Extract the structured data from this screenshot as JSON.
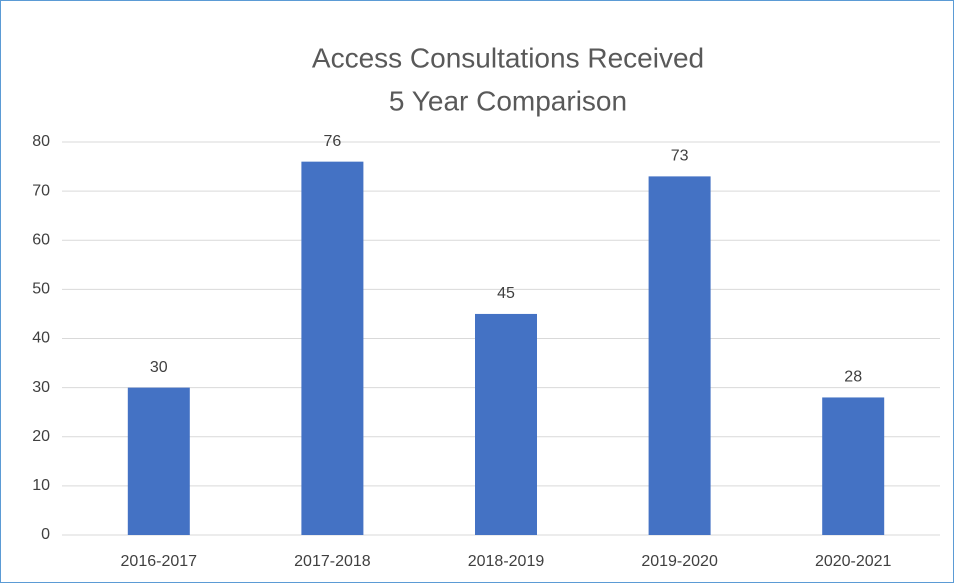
{
  "chart_data": {
    "type": "bar",
    "title": "Access Consultations Received",
    "subtitle": "5 Year Comparison",
    "categories": [
      "2016-2017",
      "2017-2018",
      "2018-2019",
      "2019-2020",
      "2020-2021"
    ],
    "values": [
      30,
      76,
      45,
      73,
      28
    ],
    "color": "#4472c4",
    "ylim": [
      0,
      80
    ],
    "yticks": [
      0,
      10,
      20,
      30,
      40,
      50,
      60,
      70,
      80
    ],
    "grid": true
  }
}
